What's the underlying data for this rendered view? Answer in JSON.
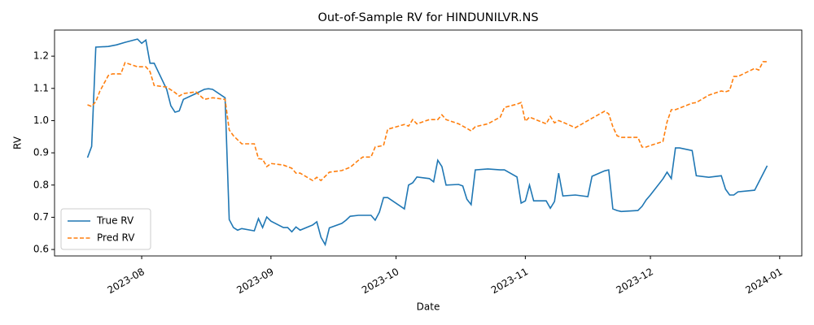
{
  "chart_data": {
    "type": "line",
    "title": "Out-of-Sample RV for HINDUNILVR.NS",
    "xlabel": "Date",
    "ylabel": "RV",
    "xlim": [
      19549.1,
      19728.3
    ],
    "ylim": [
      0.58,
      1.281
    ],
    "xticks": [
      {
        "value": 19570,
        "label": "2023-08"
      },
      {
        "value": 19601,
        "label": "2023-09"
      },
      {
        "value": 19631,
        "label": "2023-10"
      },
      {
        "value": 19662,
        "label": "2023-11"
      },
      {
        "value": 19692,
        "label": "2023-12"
      },
      {
        "value": 19723,
        "label": "2024-01"
      }
    ],
    "yticks": [
      0.6,
      0.7,
      0.8,
      0.9,
      {
        "value": 1,
        "label": "1.0"
      },
      1.1,
      1.2
    ],
    "legend": "lower left",
    "series": [
      {
        "name": "True RV",
        "color": "#1f77b4",
        "linestyle": "solid",
        "x": [
          19557,
          19558,
          19559,
          19562,
          19564,
          19566,
          19569,
          19570,
          19571,
          19572,
          19573,
          19576,
          19577,
          19578,
          19579,
          19580,
          19583,
          19585,
          19586,
          19587,
          19590,
          19591,
          19592,
          19593,
          19594,
          19597,
          19598,
          19599,
          19600,
          19601,
          19604,
          19605,
          19606,
          19607,
          19608,
          19611,
          19612,
          19613,
          19614,
          19615,
          19618,
          19619,
          19620,
          19622,
          19625,
          19626,
          19627,
          19628,
          19629,
          19633,
          19634,
          19635,
          19636,
          19639,
          19640,
          19641,
          19642,
          19643,
          19646,
          19647,
          19648,
          19649,
          19650,
          19653,
          19656,
          19657,
          19660,
          19661,
          19662,
          19663,
          19664,
          19667,
          19668,
          19669,
          19670,
          19671,
          19674,
          19677,
          19678,
          19681,
          19682,
          19683,
          19684,
          19685,
          19689,
          19690,
          19691,
          19692,
          19695,
          19696,
          19697,
          19698,
          19699,
          19702,
          19703,
          19706,
          19709,
          19710,
          19711,
          19712,
          19713,
          19717,
          19720
        ],
        "values": [
          0.885,
          0.92,
          1.228,
          1.23,
          1.235,
          1.243,
          1.253,
          1.24,
          1.25,
          1.178,
          1.178,
          1.097,
          1.046,
          1.026,
          1.03,
          1.066,
          1.084,
          1.097,
          1.099,
          1.097,
          1.071,
          0.693,
          0.668,
          0.66,
          0.665,
          0.658,
          0.696,
          0.668,
          0.701,
          0.688,
          0.668,
          0.668,
          0.655,
          0.67,
          0.66,
          0.676,
          0.686,
          0.638,
          0.615,
          0.667,
          0.681,
          0.691,
          0.703,
          0.706,
          0.706,
          0.691,
          0.716,
          0.761,
          0.761,
          0.726,
          0.8,
          0.807,
          0.825,
          0.82,
          0.81,
          0.877,
          0.857,
          0.8,
          0.802,
          0.797,
          0.756,
          0.739,
          0.847,
          0.85,
          0.847,
          0.847,
          0.825,
          0.744,
          0.751,
          0.8,
          0.751,
          0.751,
          0.728,
          0.749,
          0.837,
          0.766,
          0.769,
          0.764,
          0.827,
          0.844,
          0.847,
          0.726,
          0.721,
          0.718,
          0.721,
          0.734,
          0.754,
          0.769,
          0.819,
          0.84,
          0.82,
          0.915,
          0.915,
          0.907,
          0.829,
          0.824,
          0.829,
          0.787,
          0.769,
          0.769,
          0.779,
          0.784,
          0.86
        ]
      },
      {
        "name": "Pred RV",
        "color": "#ff7f0e",
        "linestyle": "dashed",
        "x": [
          19557,
          19558,
          19559,
          19560,
          19562,
          19563,
          19565,
          19566,
          19569,
          19571,
          19572,
          19573,
          19576,
          19578,
          19579,
          19580,
          19583,
          19585,
          19587,
          19590,
          19591,
          19592,
          19594,
          19597,
          19598,
          19599,
          19600,
          19601,
          19604,
          19606,
          19607,
          19608,
          19611,
          19612,
          19613,
          19614,
          19615,
          19618,
          19620,
          19622,
          19623,
          19625,
          19626,
          19628,
          19629,
          19633,
          19634,
          19635,
          19636,
          19639,
          19641,
          19642,
          19643,
          19646,
          19648,
          19649,
          19650,
          19653,
          19656,
          19657,
          19660,
          19661,
          19662,
          19663,
          19667,
          19668,
          19669,
          19670,
          19671,
          19674,
          19677,
          19681,
          19682,
          19683,
          19684,
          19685,
          19689,
          19690,
          19691,
          19692,
          19695,
          19696,
          19697,
          19698,
          19702,
          19703,
          19706,
          19709,
          19710,
          19711,
          19712,
          19713,
          19717,
          19718,
          19719,
          19720
        ],
        "values": [
          1.049,
          1.044,
          1.059,
          1.092,
          1.14,
          1.145,
          1.145,
          1.18,
          1.167,
          1.167,
          1.152,
          1.109,
          1.104,
          1.087,
          1.076,
          1.084,
          1.089,
          1.066,
          1.071,
          1.066,
          0.971,
          0.953,
          0.928,
          0.928,
          0.882,
          0.88,
          0.857,
          0.867,
          0.862,
          0.852,
          0.837,
          0.837,
          0.814,
          0.824,
          0.814,
          0.827,
          0.84,
          0.845,
          0.855,
          0.877,
          0.887,
          0.887,
          0.918,
          0.923,
          0.973,
          0.988,
          0.983,
          1.003,
          0.99,
          1.003,
          1.003,
          1.018,
          1.003,
          0.99,
          0.976,
          0.968,
          0.981,
          0.99,
          1.011,
          1.041,
          1.051,
          1.056,
          0.998,
          1.011,
          0.99,
          1.013,
          0.993,
          1.0,
          0.995,
          0.978,
          1.0,
          1.029,
          1.021,
          0.981,
          0.953,
          0.948,
          0.948,
          0.918,
          0.918,
          0.923,
          0.935,
          0.996,
          1.034,
          1.034,
          1.054,
          1.056,
          1.079,
          1.092,
          1.089,
          1.094,
          1.137,
          1.137,
          1.162,
          1.157,
          1.183,
          1.183
        ]
      }
    ]
  }
}
